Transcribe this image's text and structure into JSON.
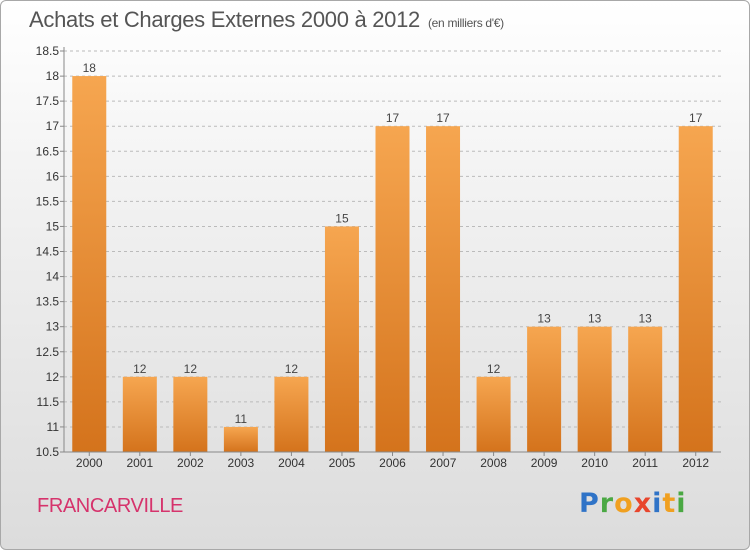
{
  "title": "Achats et Charges Externes 2000 à 2012",
  "unit_note": "(en milliers d'€)",
  "place": "FRANCARVILLE",
  "logo": {
    "letters": [
      "P",
      "r",
      "o",
      "x",
      "i",
      "t",
      "i"
    ],
    "colors": [
      "#2f73c7",
      "#4aa843",
      "#f0a020",
      "#e8452c",
      "#2f73c7",
      "#f0a020",
      "#4aa843"
    ]
  },
  "colors": {
    "bar_top": "#f6a650",
    "bar_bottom": "#d4731c",
    "axis": "#888888",
    "grid": "#bbbbbb"
  },
  "chart_data": {
    "type": "bar",
    "title": "Achats et Charges Externes 2000 à 2012",
    "xlabel": "",
    "ylabel": "",
    "categories": [
      "2000",
      "2001",
      "2002",
      "2003",
      "2004",
      "2005",
      "2006",
      "2007",
      "2008",
      "2009",
      "2010",
      "2011",
      "2012"
    ],
    "values": [
      18,
      12,
      12,
      11,
      12,
      15,
      17,
      17,
      12,
      13,
      13,
      13,
      17
    ],
    "ylim": [
      10.5,
      18.5
    ],
    "yticks": [
      "10.5",
      "11",
      "11.5",
      "12",
      "12.5",
      "13",
      "13.5",
      "14",
      "14.5",
      "15",
      "15.5",
      "16",
      "16.5",
      "17",
      "17.5",
      "18",
      "18.5"
    ],
    "grid": "horizontal dashed",
    "legend": "none"
  }
}
